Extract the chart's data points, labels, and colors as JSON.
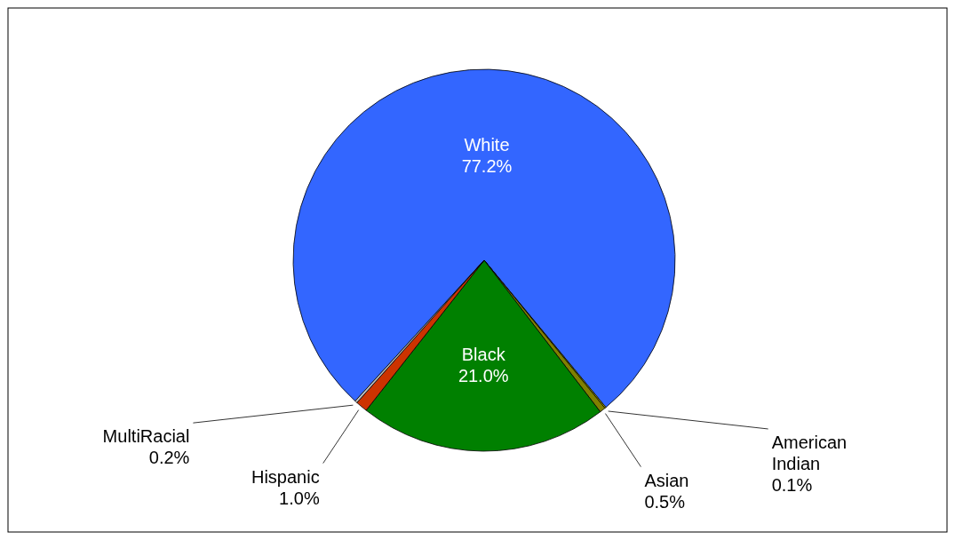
{
  "chart_data": {
    "type": "pie",
    "categories": [
      "White",
      "American Indian",
      "Asian",
      "Black",
      "Hispanic",
      "MultiRacial"
    ],
    "values": [
      77.2,
      0.1,
      0.5,
      21.0,
      1.0,
      0.2
    ],
    "colors": [
      "#3366ff",
      "#cccc00",
      "#808000",
      "#008000",
      "#cc3300",
      "#c0c0c0"
    ],
    "value_labels": [
      "77.2%",
      "0.1%",
      "0.5%",
      "21.0%",
      "1.0%",
      "0.2%"
    ]
  }
}
